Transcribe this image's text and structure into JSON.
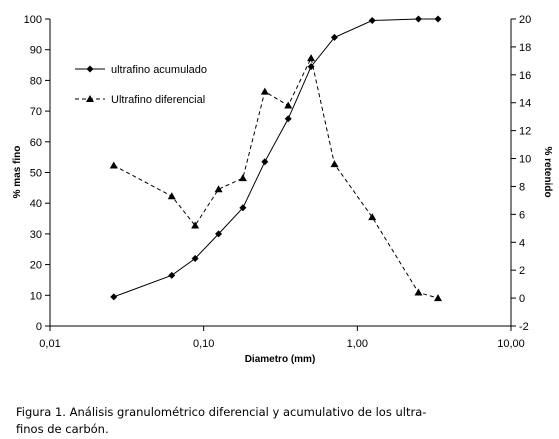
{
  "chart_data": {
    "type": "line",
    "xscale": "log",
    "xlabel": "Diametro (mm)",
    "ylabel_left": "% mas fino",
    "ylabel_right": "% retenido",
    "xlim": [
      0.01,
      10
    ],
    "xticks": [
      "0,01",
      "0,10",
      "1,00",
      "10,00"
    ],
    "ylim_left": [
      0,
      100
    ],
    "yticks_left": [
      "0",
      "10",
      "20",
      "30",
      "40",
      "50",
      "60",
      "70",
      "80",
      "90",
      "100"
    ],
    "ylim_right": [
      -2,
      20
    ],
    "yticks_right": [
      "-2",
      "0",
      "2",
      "4",
      "6",
      "8",
      "10",
      "12",
      "14",
      "16",
      "18",
      "20"
    ],
    "grid": false,
    "legend_position": "top-left",
    "series": [
      {
        "name": "ultrafino acumulado",
        "axis": "left",
        "marker": "diamond",
        "line": "solid",
        "points": [
          [
            0.026,
            9.5
          ],
          [
            0.062,
            16.5
          ],
          [
            0.088,
            22
          ],
          [
            0.125,
            30
          ],
          [
            0.18,
            38.5
          ],
          [
            0.25,
            53.5
          ],
          [
            0.355,
            67.5
          ],
          [
            0.5,
            84.5
          ],
          [
            0.71,
            94
          ],
          [
            1.25,
            99.5
          ],
          [
            2.5,
            100
          ],
          [
            3.35,
            100
          ]
        ]
      },
      {
        "name": "Ultrafino diferencial",
        "axis": "right",
        "marker": "triangle",
        "line": "dashed",
        "points": [
          [
            0.026,
            9.5
          ],
          [
            0.062,
            7.3
          ],
          [
            0.088,
            5.2
          ],
          [
            0.125,
            7.8
          ],
          [
            0.18,
            8.6
          ],
          [
            0.25,
            14.8
          ],
          [
            0.355,
            13.8
          ],
          [
            0.5,
            17.2
          ],
          [
            0.71,
            9.6
          ],
          [
            1.25,
            5.8
          ],
          [
            2.5,
            0.4
          ],
          [
            3.35,
            0.0
          ]
        ]
      }
    ]
  },
  "caption": {
    "line1": "Figura 1. Análisis granulométrico diferencial y acumulativo de los ultra-",
    "line2": "finos de carbón."
  }
}
